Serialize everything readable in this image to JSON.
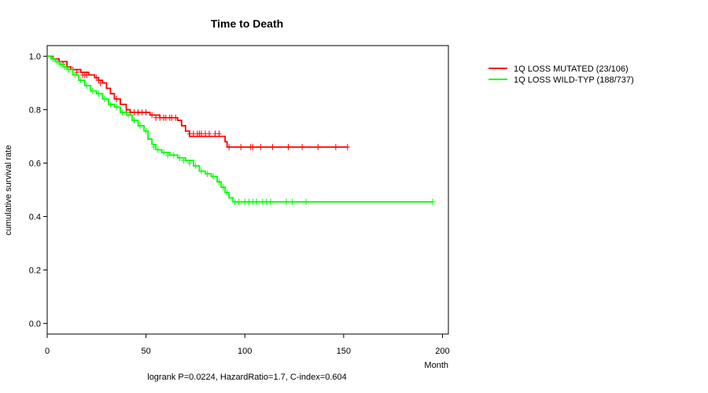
{
  "chart_data": {
    "type": "line",
    "subtype": "kaplan-meier",
    "title": "Time to Death",
    "xlabel": "Month",
    "ylabel": "cumulative survival rate",
    "footnote": "logrank P=0.0224, HazardRatio=1.7, C-index=0.604",
    "xlim": [
      0,
      203
    ],
    "ylim": [
      -0.04,
      1.04
    ],
    "xticks": [
      0,
      50,
      100,
      150,
      200
    ],
    "yticks": [
      0.0,
      0.2,
      0.4,
      0.6,
      0.8,
      1.0
    ],
    "ytick_labels": [
      "0.0",
      "0.2",
      "0.4",
      "0.6",
      "0.8",
      "1.0"
    ],
    "grid": false,
    "legend_position": "top-right outside plot",
    "series": [
      {
        "name": "1Q LOSS MUTATED (23/106)",
        "color": "#ff0000",
        "steps": [
          [
            0,
            1.0
          ],
          [
            3,
            0.99
          ],
          [
            6,
            0.98
          ],
          [
            10,
            0.96
          ],
          [
            12,
            0.95
          ],
          [
            17,
            0.94
          ],
          [
            21,
            0.93
          ],
          [
            24,
            0.92
          ],
          [
            26,
            0.91
          ],
          [
            28,
            0.9
          ],
          [
            30,
            0.88
          ],
          [
            32,
            0.86
          ],
          [
            34,
            0.84
          ],
          [
            37,
            0.82
          ],
          [
            40,
            0.8
          ],
          [
            42,
            0.79
          ],
          [
            52,
            0.78
          ],
          [
            57,
            0.77
          ],
          [
            66,
            0.76
          ],
          [
            68,
            0.74
          ],
          [
            70,
            0.72
          ],
          [
            72,
            0.7
          ],
          [
            90,
            0.68
          ],
          [
            91,
            0.66
          ],
          [
            152,
            0.66
          ]
        ],
        "censored": [
          [
            6,
            0.98
          ],
          [
            8,
            0.97
          ],
          [
            13,
            0.95
          ],
          [
            15,
            0.94
          ],
          [
            18,
            0.93
          ],
          [
            19,
            0.93
          ],
          [
            20,
            0.93
          ],
          [
            25,
            0.92
          ],
          [
            26,
            0.91
          ],
          [
            27,
            0.9
          ],
          [
            35,
            0.84
          ],
          [
            40,
            0.79
          ],
          [
            42,
            0.79
          ],
          [
            44,
            0.79
          ],
          [
            46,
            0.79
          ],
          [
            48,
            0.79
          ],
          [
            50,
            0.79
          ],
          [
            53,
            0.78
          ],
          [
            55,
            0.77
          ],
          [
            57,
            0.77
          ],
          [
            59,
            0.77
          ],
          [
            60,
            0.77
          ],
          [
            62,
            0.77
          ],
          [
            63,
            0.77
          ],
          [
            65,
            0.77
          ],
          [
            72,
            0.71
          ],
          [
            74,
            0.71
          ],
          [
            76,
            0.71
          ],
          [
            77,
            0.71
          ],
          [
            78,
            0.71
          ],
          [
            80,
            0.71
          ],
          [
            82,
            0.71
          ],
          [
            85,
            0.71
          ],
          [
            87,
            0.71
          ],
          [
            92,
            0.66
          ],
          [
            98,
            0.66
          ],
          [
            103,
            0.66
          ],
          [
            104,
            0.66
          ],
          [
            108,
            0.66
          ],
          [
            114,
            0.66
          ],
          [
            122,
            0.66
          ],
          [
            129,
            0.66
          ],
          [
            137,
            0.66
          ],
          [
            146,
            0.66
          ],
          [
            152,
            0.66
          ]
        ]
      },
      {
        "name": "1Q LOSS WILD-TYP (188/737)",
        "color": "#00ff00",
        "steps": [
          [
            0,
            1.0
          ],
          [
            2,
            0.99
          ],
          [
            4,
            0.98
          ],
          [
            6,
            0.97
          ],
          [
            8,
            0.96
          ],
          [
            10,
            0.95
          ],
          [
            13,
            0.93
          ],
          [
            16,
            0.91
          ],
          [
            19,
            0.89
          ],
          [
            22,
            0.87
          ],
          [
            25,
            0.86
          ],
          [
            28,
            0.84
          ],
          [
            31,
            0.82
          ],
          [
            34,
            0.81
          ],
          [
            37,
            0.79
          ],
          [
            40,
            0.78
          ],
          [
            43,
            0.76
          ],
          [
            46,
            0.74
          ],
          [
            49,
            0.72
          ],
          [
            51,
            0.69
          ],
          [
            53,
            0.67
          ],
          [
            55,
            0.65
          ],
          [
            58,
            0.64
          ],
          [
            62,
            0.63
          ],
          [
            66,
            0.62
          ],
          [
            70,
            0.61
          ],
          [
            74,
            0.59
          ],
          [
            77,
            0.57
          ],
          [
            80,
            0.56
          ],
          [
            83,
            0.55
          ],
          [
            86,
            0.53
          ],
          [
            88,
            0.51
          ],
          [
            90,
            0.49
          ],
          [
            92,
            0.47
          ],
          [
            94,
            0.455
          ],
          [
            195,
            0.455
          ]
        ],
        "censored": [
          [
            3,
            0.99
          ],
          [
            5,
            0.98
          ],
          [
            7,
            0.97
          ],
          [
            9,
            0.96
          ],
          [
            11,
            0.95
          ],
          [
            14,
            0.93
          ],
          [
            17,
            0.91
          ],
          [
            20,
            0.89
          ],
          [
            23,
            0.87
          ],
          [
            26,
            0.86
          ],
          [
            29,
            0.84
          ],
          [
            32,
            0.82
          ],
          [
            35,
            0.81
          ],
          [
            38,
            0.79
          ],
          [
            41,
            0.78
          ],
          [
            44,
            0.76
          ],
          [
            47,
            0.74
          ],
          [
            50,
            0.72
          ],
          [
            54,
            0.66
          ],
          [
            56,
            0.65
          ],
          [
            59,
            0.64
          ],
          [
            61,
            0.63
          ],
          [
            64,
            0.63
          ],
          [
            67,
            0.62
          ],
          [
            69,
            0.61
          ],
          [
            72,
            0.6
          ],
          [
            75,
            0.59
          ],
          [
            78,
            0.57
          ],
          [
            81,
            0.56
          ],
          [
            84,
            0.55
          ],
          [
            87,
            0.53
          ],
          [
            89,
            0.51
          ],
          [
            91,
            0.49
          ],
          [
            95,
            0.455
          ],
          [
            97,
            0.455
          ],
          [
            100,
            0.455
          ],
          [
            102,
            0.455
          ],
          [
            104,
            0.455
          ],
          [
            106,
            0.455
          ],
          [
            109,
            0.455
          ],
          [
            111,
            0.455
          ],
          [
            113,
            0.455
          ],
          [
            121,
            0.455
          ],
          [
            124,
            0.455
          ],
          [
            131,
            0.455
          ],
          [
            195,
            0.455
          ]
        ]
      }
    ]
  }
}
